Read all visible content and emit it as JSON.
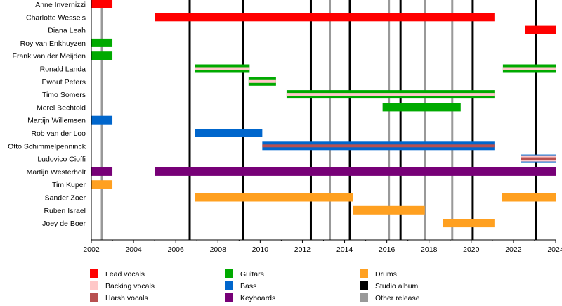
{
  "chart_data": {
    "type": "bar",
    "orientation": "horizontal-range",
    "xlim": [
      2002,
      2024
    ],
    "x_ticks": [
      "2002",
      "2004",
      "2006",
      "2008",
      "2010",
      "2012",
      "2014",
      "2016",
      "2018",
      "2020",
      "2022",
      "2024"
    ],
    "grid": false,
    "legend_placement": "bottom",
    "roles": {
      "lead": {
        "label": "Lead vocals",
        "color": "#FF0000"
      },
      "backing": {
        "label": "Backing vocals",
        "color": "#FFC8C8"
      },
      "harsh": {
        "label": "Harsh vocals",
        "color": "#B85050"
      },
      "guitars": {
        "label": "Guitars",
        "color": "#00AA00"
      },
      "bass": {
        "label": "Bass",
        "color": "#0066CC"
      },
      "keyboards": {
        "label": "Keyboards",
        "color": "#770077"
      },
      "drums": {
        "label": "Drums",
        "color": "#FFA020"
      }
    },
    "events": {
      "studio": {
        "label": "Studio album",
        "color": "#000000",
        "years": [
          2006.66,
          2009.2,
          2012.4,
          2014.25,
          2016.65,
          2020.07,
          2023.07
        ]
      },
      "other": {
        "label": "Other release",
        "color": "#999999",
        "years": [
          2002.5,
          2013.3,
          2016.1,
          2017.8,
          2019.1
        ]
      }
    },
    "legend_order": [
      "lead",
      "backing",
      "harsh",
      "guitars",
      "bass",
      "keyboards",
      "drums",
      "studio",
      "other"
    ],
    "members": [
      {
        "name": "Anne Invernizzi",
        "roles": [
          "lead"
        ],
        "periods": [
          [
            2002,
            2003
          ]
        ]
      },
      {
        "name": "Charlotte Wessels",
        "roles": [
          "lead"
        ],
        "periods": [
          [
            2005,
            2021.1
          ]
        ]
      },
      {
        "name": "Diana Leah",
        "roles": [
          "lead"
        ],
        "periods": [
          [
            2022.55,
            2024
          ]
        ]
      },
      {
        "name": "Roy van Enkhuyzen",
        "roles": [
          "guitars"
        ],
        "periods": [
          [
            2002,
            2003
          ]
        ]
      },
      {
        "name": "Frank van der Meijden",
        "roles": [
          "guitars"
        ],
        "periods": [
          [
            2002,
            2003
          ]
        ]
      },
      {
        "name": "Ronald Landa",
        "roles": [
          "guitars",
          "backing"
        ],
        "periods": [
          [
            2006.9,
            2009.5
          ],
          [
            2021.5,
            2024
          ]
        ]
      },
      {
        "name": "Ewout Peters",
        "roles": [
          "guitars",
          "backing"
        ],
        "periods": [
          [
            2009.45,
            2010.75
          ]
        ]
      },
      {
        "name": "Timo Somers",
        "roles": [
          "guitars",
          "backing"
        ],
        "periods": [
          [
            2011.25,
            2021.1
          ]
        ]
      },
      {
        "name": "Merel Bechtold",
        "roles": [
          "guitars"
        ],
        "periods": [
          [
            2015.8,
            2019.5
          ]
        ]
      },
      {
        "name": "Martijn Willemsen",
        "roles": [
          "bass"
        ],
        "periods": [
          [
            2002,
            2003
          ]
        ]
      },
      {
        "name": "Rob van der Loo",
        "roles": [
          "bass"
        ],
        "periods": [
          [
            2006.9,
            2010.1
          ]
        ]
      },
      {
        "name": "Otto Schimmelpenninck",
        "roles": [
          "bass",
          "harsh"
        ],
        "periods": [
          [
            2010.1,
            2021.1
          ]
        ]
      },
      {
        "name": "Ludovico Cioffi",
        "roles": [
          "bass",
          "backing",
          "harsh"
        ],
        "periods": [
          [
            2022.35,
            2024
          ]
        ]
      },
      {
        "name": "Martijn Westerholt",
        "roles": [
          "keyboards"
        ],
        "periods": [
          [
            2002,
            2003
          ],
          [
            2005,
            2024
          ]
        ]
      },
      {
        "name": "Tim Kuper",
        "roles": [
          "drums"
        ],
        "periods": [
          [
            2002,
            2003
          ]
        ]
      },
      {
        "name": "Sander Zoer",
        "roles": [
          "drums"
        ],
        "periods": [
          [
            2006.9,
            2014.4
          ],
          [
            2021.45,
            2024
          ]
        ]
      },
      {
        "name": "Ruben Israel",
        "roles": [
          "drums"
        ],
        "periods": [
          [
            2014.4,
            2017.8
          ]
        ]
      },
      {
        "name": "Joey de Boer",
        "roles": [
          "drums"
        ],
        "periods": [
          [
            2018.65,
            2021.1
          ]
        ]
      }
    ]
  }
}
